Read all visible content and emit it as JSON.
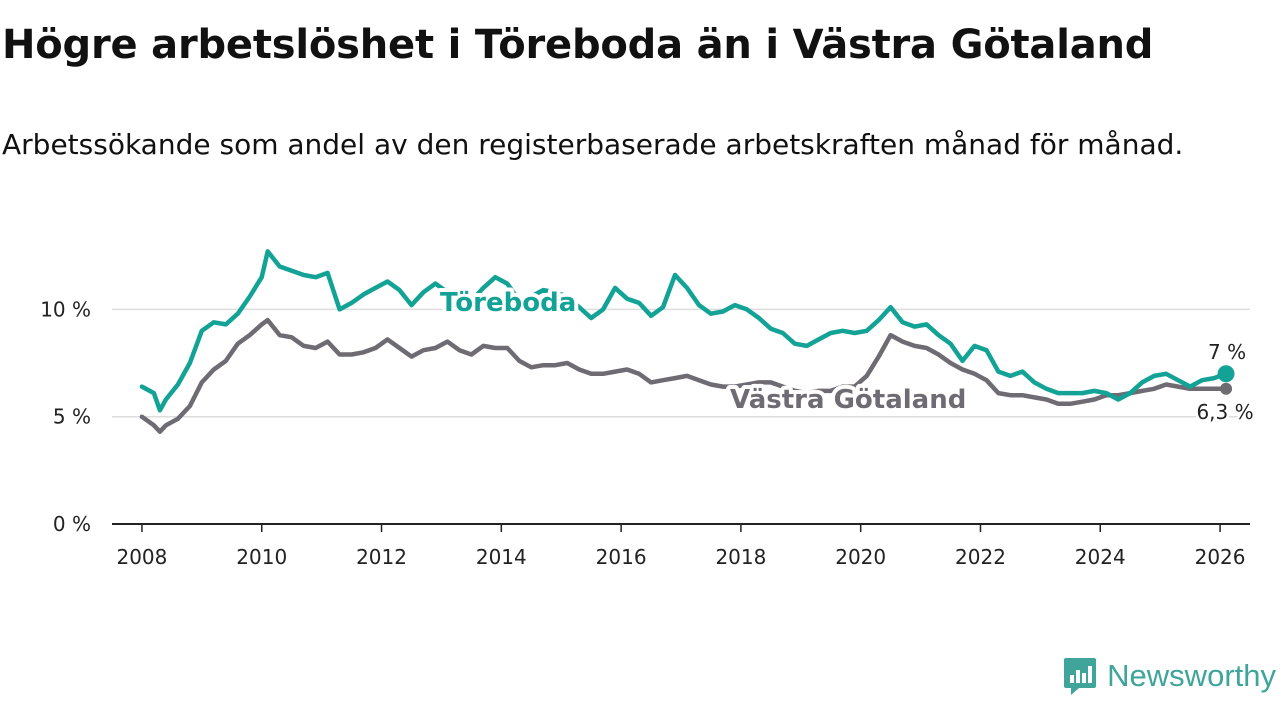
{
  "title": "Högre arbetslöshet i Töreboda än i Västra Götaland",
  "subtitle": "Arbetssökande som andel av den registerbaserade arbetskraften månad för månad.",
  "brand": {
    "name": "Newsworthy"
  },
  "colors": {
    "toreboda": "#13a396",
    "vastra": "#6e6b72",
    "grid": "#dddddd",
    "axis": "#222222"
  },
  "chart_data": {
    "type": "line",
    "xlabel": "",
    "ylabel": "",
    "xlim": [
      2007.5,
      2026.5
    ],
    "ylim": [
      0,
      13
    ],
    "x_ticks": [
      {
        "value": 2008,
        "label": "2008"
      },
      {
        "value": 2010,
        "label": "2010"
      },
      {
        "value": 2012,
        "label": "2012"
      },
      {
        "value": 2014,
        "label": "2014"
      },
      {
        "value": 2016,
        "label": "2016"
      },
      {
        "value": 2018,
        "label": "2018"
      },
      {
        "value": 2020,
        "label": "2020"
      },
      {
        "value": 2022,
        "label": "2022"
      },
      {
        "value": 2024,
        "label": "2024"
      },
      {
        "value": 2026,
        "label": "2026"
      }
    ],
    "y_ticks": [
      {
        "value": 0,
        "label": "0 %"
      },
      {
        "value": 5,
        "label": "5 %"
      },
      {
        "value": 10,
        "label": "10 %"
      }
    ],
    "series": [
      {
        "name": "Töreboda",
        "end_label": "7 %",
        "x": [
          2008.0,
          2008.2,
          2008.3,
          2008.4,
          2008.6,
          2008.8,
          2009.0,
          2009.2,
          2009.4,
          2009.6,
          2009.8,
          2010.0,
          2010.1,
          2010.3,
          2010.5,
          2010.7,
          2010.9,
          2011.1,
          2011.3,
          2011.5,
          2011.7,
          2011.9,
          2012.1,
          2012.3,
          2012.5,
          2012.7,
          2012.9,
          2013.1,
          2013.3,
          2013.5,
          2013.7,
          2013.9,
          2014.1,
          2014.3,
          2014.5,
          2014.7,
          2014.9,
          2015.1,
          2015.3,
          2015.5,
          2015.7,
          2015.9,
          2016.1,
          2016.3,
          2016.5,
          2016.7,
          2016.9,
          2017.1,
          2017.3,
          2017.5,
          2017.7,
          2017.9,
          2018.1,
          2018.3,
          2018.5,
          2018.7,
          2018.9,
          2019.1,
          2019.3,
          2019.5,
          2019.7,
          2019.9,
          2020.1,
          2020.3,
          2020.5,
          2020.7,
          2020.9,
          2021.1,
          2021.3,
          2021.5,
          2021.7,
          2021.9,
          2022.1,
          2022.3,
          2022.5,
          2022.7,
          2022.9,
          2023.1,
          2023.3,
          2023.5,
          2023.7,
          2023.9,
          2024.1,
          2024.3,
          2024.5,
          2024.7,
          2024.9,
          2025.1,
          2025.3,
          2025.5,
          2025.7,
          2025.9,
          2026.1
        ],
        "y": [
          6.4,
          6.1,
          5.3,
          5.8,
          6.5,
          7.5,
          9.0,
          9.4,
          9.3,
          9.8,
          10.6,
          11.5,
          12.7,
          12.0,
          11.8,
          11.6,
          11.5,
          11.7,
          10.0,
          10.3,
          10.7,
          11.0,
          11.3,
          10.9,
          10.2,
          10.8,
          11.2,
          10.8,
          10.0,
          10.4,
          11.0,
          11.5,
          11.2,
          10.4,
          10.6,
          10.9,
          10.8,
          10.6,
          10.1,
          9.6,
          10.0,
          11.0,
          10.5,
          10.3,
          9.7,
          10.1,
          11.6,
          11.0,
          10.2,
          9.8,
          9.9,
          10.2,
          10.0,
          9.6,
          9.1,
          8.9,
          8.4,
          8.3,
          8.6,
          8.9,
          9.0,
          8.9,
          9.0,
          9.5,
          10.1,
          9.4,
          9.2,
          9.3,
          8.8,
          8.4,
          7.6,
          8.3,
          8.1,
          7.1,
          6.9,
          7.1,
          6.6,
          6.3,
          6.1,
          6.1,
          6.1,
          6.2,
          6.1,
          5.8,
          6.1,
          6.6,
          6.9,
          7.0,
          6.7,
          6.4,
          6.7,
          6.8,
          7.0
        ]
      },
      {
        "name": "Västra Götaland",
        "end_label": "6,3 %",
        "x": [
          2008.0,
          2008.2,
          2008.3,
          2008.4,
          2008.6,
          2008.8,
          2009.0,
          2009.2,
          2009.4,
          2009.6,
          2009.8,
          2010.0,
          2010.1,
          2010.3,
          2010.5,
          2010.7,
          2010.9,
          2011.1,
          2011.3,
          2011.5,
          2011.7,
          2011.9,
          2012.1,
          2012.3,
          2012.5,
          2012.7,
          2012.9,
          2013.1,
          2013.3,
          2013.5,
          2013.7,
          2013.9,
          2014.1,
          2014.3,
          2014.5,
          2014.7,
          2014.9,
          2015.1,
          2015.3,
          2015.5,
          2015.7,
          2015.9,
          2016.1,
          2016.3,
          2016.5,
          2016.7,
          2016.9,
          2017.1,
          2017.3,
          2017.5,
          2017.7,
          2017.9,
          2018.1,
          2018.3,
          2018.5,
          2018.7,
          2018.9,
          2019.1,
          2019.3,
          2019.5,
          2019.7,
          2019.9,
          2020.1,
          2020.3,
          2020.5,
          2020.7,
          2020.9,
          2021.1,
          2021.3,
          2021.5,
          2021.7,
          2021.9,
          2022.1,
          2022.3,
          2022.5,
          2022.7,
          2022.9,
          2023.1,
          2023.3,
          2023.5,
          2023.7,
          2023.9,
          2024.1,
          2024.3,
          2024.5,
          2024.7,
          2024.9,
          2025.1,
          2025.3,
          2025.5,
          2025.7,
          2025.9,
          2026.1
        ],
        "y": [
          5.0,
          4.6,
          4.3,
          4.6,
          4.9,
          5.5,
          6.6,
          7.2,
          7.6,
          8.4,
          8.8,
          9.3,
          9.5,
          8.8,
          8.7,
          8.3,
          8.2,
          8.5,
          7.9,
          7.9,
          8.0,
          8.2,
          8.6,
          8.2,
          7.8,
          8.1,
          8.2,
          8.5,
          8.1,
          7.9,
          8.3,
          8.2,
          8.2,
          7.6,
          7.3,
          7.4,
          7.4,
          7.5,
          7.2,
          7.0,
          7.0,
          7.1,
          7.2,
          7.0,
          6.6,
          6.7,
          6.8,
          6.9,
          6.7,
          6.5,
          6.4,
          6.4,
          6.5,
          6.6,
          6.6,
          6.4,
          6.2,
          6.1,
          6.2,
          6.2,
          6.4,
          6.4,
          6.9,
          7.8,
          8.8,
          8.5,
          8.3,
          8.2,
          7.9,
          7.5,
          7.2,
          7.0,
          6.7,
          6.1,
          6.0,
          6.0,
          5.9,
          5.8,
          5.6,
          5.6,
          5.7,
          5.8,
          6.0,
          6.0,
          6.1,
          6.2,
          6.3,
          6.5,
          6.4,
          6.3,
          6.3,
          6.3,
          6.3
        ]
      }
    ]
  }
}
